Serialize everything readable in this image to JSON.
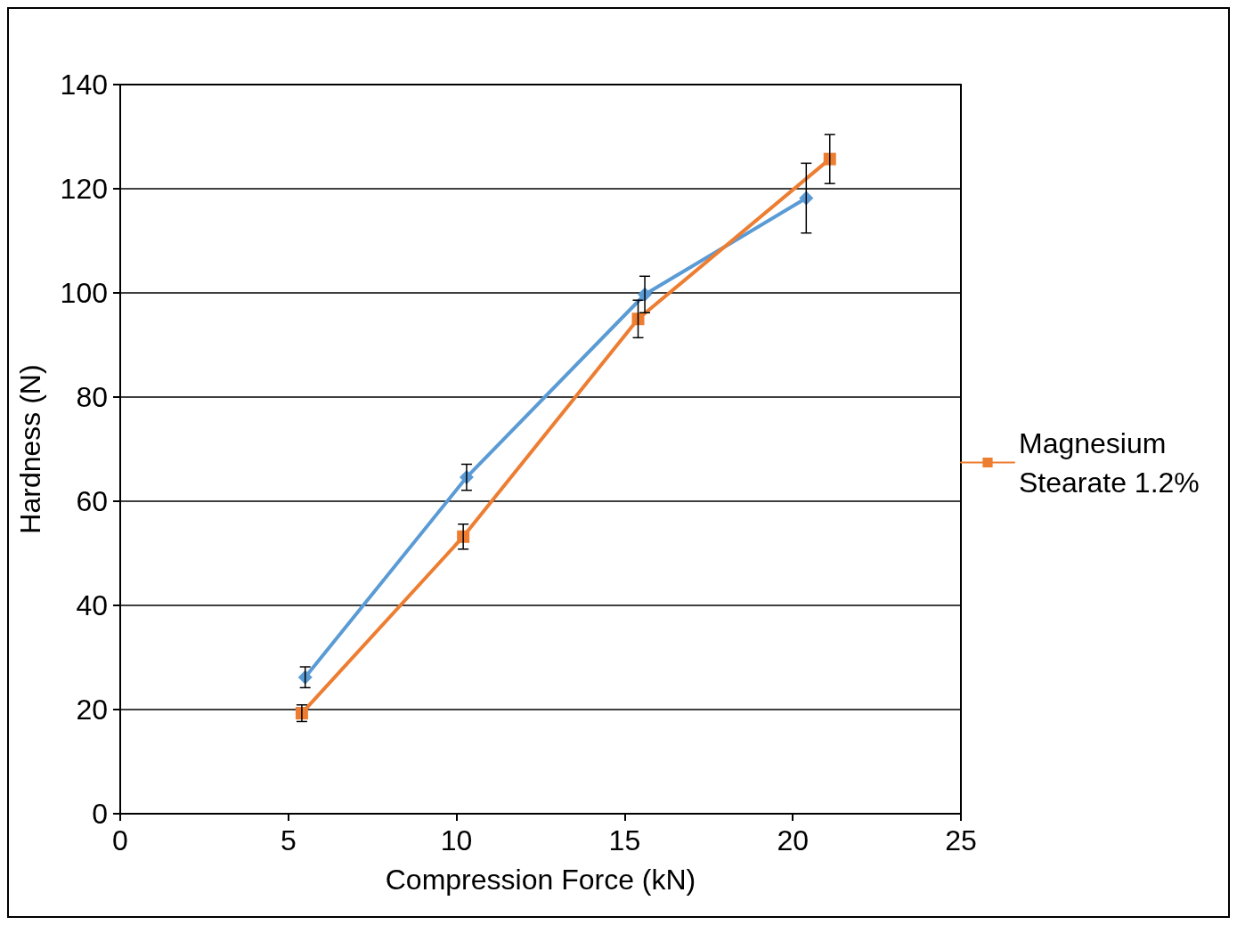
{
  "chart_data": {
    "type": "line",
    "xlabel": "Compression Force (kN)",
    "ylabel": "Hardness (N)",
    "xlim": [
      0,
      25
    ],
    "xticks": [
      0,
      5,
      10,
      15,
      20,
      25
    ],
    "ylim": [
      0,
      140
    ],
    "yticks": [
      0,
      20,
      40,
      60,
      80,
      100,
      120,
      140
    ],
    "grid": "y",
    "legend": "right",
    "line_style": "solid",
    "series": [
      {
        "color": "#5b9bd5",
        "marker": "diamond",
        "x": [
          5.5,
          10.3,
          15.6,
          20.4
        ],
        "values": [
          26.2,
          64.6,
          99.7,
          118.2
        ],
        "errors": [
          2,
          2.5,
          3.5,
          6.7
        ]
      },
      {
        "name": "Magnesium Stearate 1.2%",
        "color": "#ed7d31",
        "marker": "square",
        "x": [
          5.4,
          10.2,
          15.4,
          21.1
        ],
        "values": [
          19.3,
          53.2,
          95,
          125.7
        ],
        "errors": [
          1.6,
          2.4,
          3.6,
          4.7
        ]
      }
    ]
  }
}
